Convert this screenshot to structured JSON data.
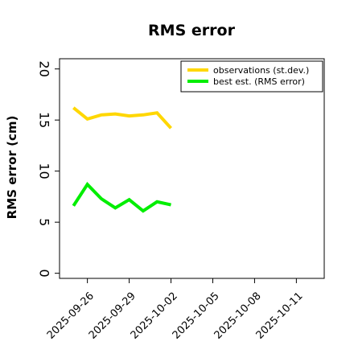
{
  "chart_data": {
    "type": "line",
    "title": "RMS error",
    "xlabel": "",
    "ylabel": "RMS error (cm)",
    "ylim": [
      -0.5,
      21
    ],
    "y_ticks": [
      0,
      5,
      10,
      15,
      20
    ],
    "x_ticks": [
      "2025-09-26",
      "2025-09-29",
      "2025-10-02",
      "2025-10-05",
      "2025-10-08",
      "2025-10-11"
    ],
    "x_tick_colors": [
      "#000000",
      "#000000",
      "#2e8b2e",
      "#000000",
      "#000000",
      "#000000"
    ],
    "x_range": [
      "2025-09-24",
      "2025-10-13"
    ],
    "grid": false,
    "legend_position": "top-right",
    "x": [
      "2025-09-25",
      "2025-09-26",
      "2025-09-27",
      "2025-09-28",
      "2025-09-29",
      "2025-09-30",
      "2025-10-01",
      "2025-10-02"
    ],
    "series": [
      {
        "name": "observations (st.dev.)",
        "color": "#ffd700",
        "values": [
          16.2,
          15.1,
          15.5,
          15.6,
          15.4,
          15.5,
          15.7,
          14.2
        ]
      },
      {
        "name": "best est. (RMS error)",
        "color": "#00ee00",
        "values": [
          6.6,
          8.7,
          7.3,
          6.4,
          7.2,
          6.1,
          7.0,
          6.7
        ]
      }
    ]
  }
}
